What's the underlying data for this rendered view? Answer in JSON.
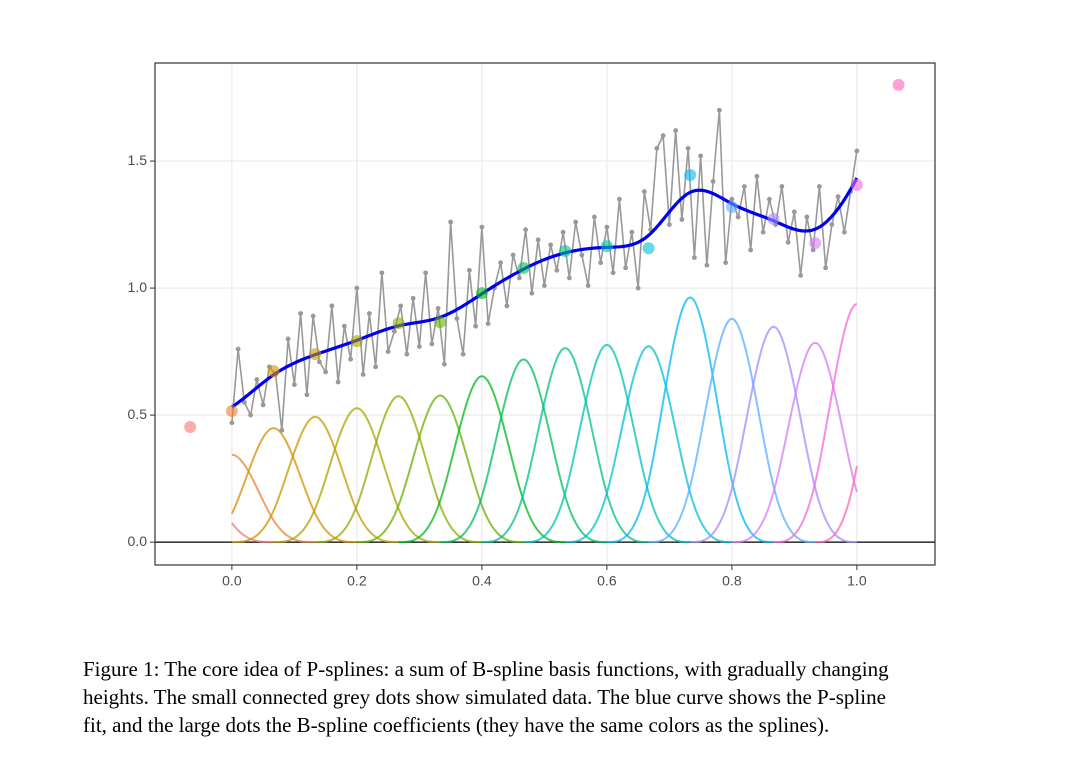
{
  "chart_data": {
    "type": "pspline",
    "xlim": [
      -0.123,
      1.125
    ],
    "ylim": [
      -0.09,
      1.886
    ],
    "xticks": [
      {
        "value": 0,
        "label": "0.0"
      },
      {
        "value": 0.2,
        "label": "0.2"
      },
      {
        "value": 0.4,
        "label": "0.4"
      },
      {
        "value": 0.6,
        "label": "0.6"
      },
      {
        "value": 0.8,
        "label": "0.8"
      },
      {
        "value": 1,
        "label": "1.0"
      }
    ],
    "yticks": [
      {
        "value": 0,
        "label": "0.0"
      },
      {
        "value": 0.5,
        "label": "0.5"
      },
      {
        "value": 1,
        "label": "1.0"
      },
      {
        "value": 1.5,
        "label": "1.5"
      }
    ],
    "grid": true,
    "data": {
      "color": "#999999",
      "x": [
        0,
        0.01,
        0.02,
        0.03,
        0.04,
        0.05,
        0.06,
        0.07,
        0.08,
        0.09,
        0.1,
        0.11,
        0.12,
        0.13,
        0.14,
        0.15,
        0.16,
        0.17,
        0.18,
        0.19,
        0.2,
        0.21,
        0.22,
        0.23,
        0.24,
        0.25,
        0.26,
        0.27,
        0.28,
        0.29,
        0.3,
        0.31,
        0.32,
        0.33,
        0.34,
        0.35,
        0.36,
        0.37,
        0.38,
        0.39,
        0.4,
        0.41,
        0.42,
        0.43,
        0.44,
        0.45,
        0.46,
        0.47,
        0.48,
        0.49,
        0.5,
        0.51,
        0.52,
        0.53,
        0.54,
        0.55,
        0.56,
        0.57,
        0.58,
        0.59,
        0.6,
        0.61,
        0.62,
        0.63,
        0.64,
        0.65,
        0.66,
        0.67,
        0.68,
        0.69,
        0.7,
        0.71,
        0.72,
        0.73,
        0.74,
        0.75,
        0.76,
        0.77,
        0.78,
        0.79,
        0.8,
        0.81,
        0.82,
        0.83,
        0.84,
        0.85,
        0.86,
        0.87,
        0.88,
        0.89,
        0.9,
        0.91,
        0.92,
        0.93,
        0.94,
        0.95,
        0.96,
        0.97,
        0.98,
        0.99,
        1
      ],
      "values": [
        0.47,
        0.76,
        0.55,
        0.5,
        0.64,
        0.54,
        0.69,
        0.66,
        0.44,
        0.8,
        0.62,
        0.9,
        0.58,
        0.89,
        0.71,
        0.67,
        0.93,
        0.63,
        0.85,
        0.72,
        1.0,
        0.66,
        0.9,
        0.69,
        1.06,
        0.75,
        0.83,
        0.93,
        0.74,
        0.96,
        0.77,
        1.06,
        0.78,
        0.92,
        0.7,
        1.26,
        0.88,
        0.74,
        1.07,
        0.85,
        1.24,
        0.86,
        1.0,
        1.1,
        0.93,
        1.13,
        1.04,
        1.23,
        0.98,
        1.19,
        1.01,
        1.17,
        1.07,
        1.22,
        1.04,
        1.26,
        1.13,
        1.01,
        1.28,
        1.1,
        1.24,
        1.06,
        1.35,
        1.08,
        1.22,
        1.0,
        1.38,
        1.23,
        1.55,
        1.6,
        1.25,
        1.62,
        1.27,
        1.55,
        1.12,
        1.52,
        1.09,
        1.42,
        1.7,
        1.1,
        1.35,
        1.28,
        1.4,
        1.15,
        1.44,
        1.22,
        1.35,
        1.25,
        1.4,
        1.18,
        1.3,
        1.05,
        1.28,
        1.15,
        1.4,
        1.08,
        1.25,
        1.36,
        1.22,
        1.38,
        1.54
      ]
    },
    "coefficients": {
      "x": [
        -0.0667,
        0,
        0.0667,
        0.1333,
        0.2,
        0.2667,
        0.3333,
        0.4,
        0.4667,
        0.5333,
        0.6,
        0.6667,
        0.7333,
        0.8,
        0.8667,
        0.9333,
        1.0,
        1.0667
      ],
      "values": [
        0.453,
        0.516,
        0.673,
        0.74,
        0.791,
        0.862,
        0.866,
        0.98,
        1.079,
        1.146,
        1.165,
        1.157,
        1.445,
        1.319,
        1.272,
        1.177,
        1.406,
        1.8
      ],
      "colors": [
        "#F8766D",
        "#EC8239",
        "#DB8E00",
        "#C79800",
        "#AEA200",
        "#8FAA00",
        "#64B200",
        "#00B81B",
        "#00BD5C",
        "#00C08B",
        "#00C1B2",
        "#00BFD5",
        "#00BAF0",
        "#5AAEFF",
        "#A58AFF",
        "#D37CF5",
        "#F066E6",
        "#FF63B6"
      ]
    },
    "fit_color": "#0000EE"
  },
  "caption": [
    "Figure 1: The core idea of P-splines: a sum of B-spline basis functions, with gradually changing",
    "heights. The small connected grey dots show simulated data. The blue curve shows the P-spline",
    "fit, and the large dots the B-spline coefficients (they have the same colors as the splines)."
  ]
}
